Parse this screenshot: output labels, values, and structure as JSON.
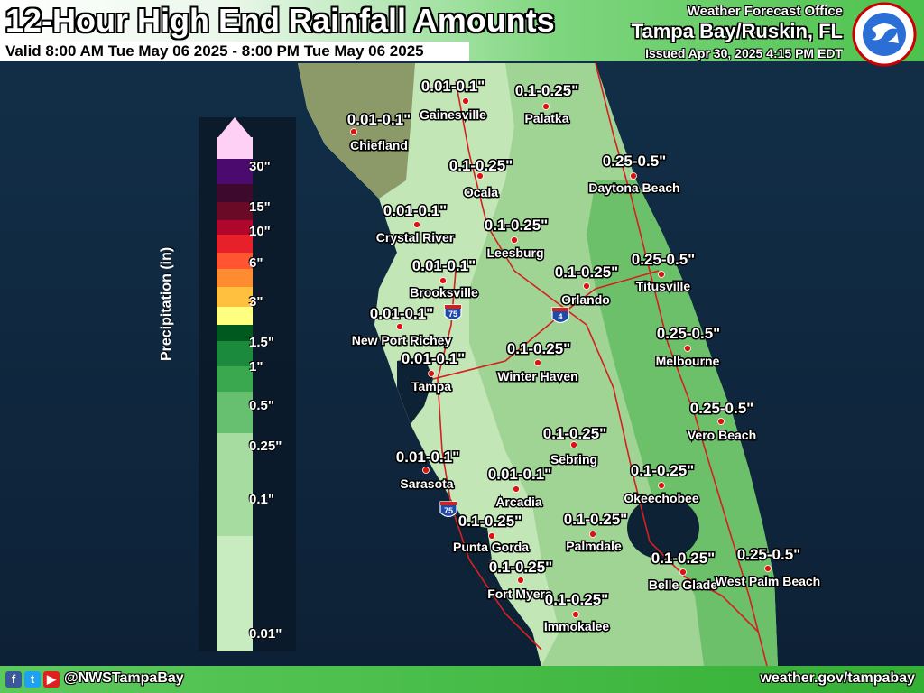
{
  "header": {
    "title": "12-Hour High End Rainfall Amounts",
    "valid": "Valid 8:00 AM Tue May 06 2025 - 8:00 PM Tue May 06 2025",
    "office_line1": "Weather Forecast Office",
    "office_line2": "Tampa Bay/Ruskin, FL",
    "issued": "Issued Apr 30, 2025 4:15 PM EDT",
    "logo_text": "NATIONAL WEATHER SERVICE"
  },
  "legend": {
    "label": "Precipitation (in)",
    "ticks": [
      "30\"",
      "15\"",
      "10\"",
      "6\"",
      "3\"",
      "1.5\"",
      "1\"",
      "0.5\"",
      "0.25\"",
      "0.1\"",
      "0.01\""
    ],
    "colors": [
      "#ffd0f5",
      "#4b0a6e",
      "#3d0a2d",
      "#6b0a26",
      "#b0062b",
      "#e8202a",
      "#ff5530",
      "#ff8c30",
      "#ffc040",
      "#ffff80",
      "#005a20",
      "#1c8a3c",
      "#3aa84e",
      "#67c070",
      "#a6dca0",
      "#c8ecc0"
    ]
  },
  "cities": [
    {
      "name": "Gainesville",
      "value": "0.01-0.1\""
    },
    {
      "name": "Palatka",
      "value": "0.1-0.25\""
    },
    {
      "name": "Chiefland",
      "value": "0.01-0.1\""
    },
    {
      "name": "Ocala",
      "value": "0.1-0.25\""
    },
    {
      "name": "Daytona Beach",
      "value": "0.25-0.5\""
    },
    {
      "name": "Crystal River",
      "value": "0.01-0.1\""
    },
    {
      "name": "Leesburg",
      "value": "0.1-0.25\""
    },
    {
      "name": "Brooksville",
      "value": "0.01-0.1\""
    },
    {
      "name": "Orlando",
      "value": "0.1-0.25\""
    },
    {
      "name": "Titusville",
      "value": "0.25-0.5\""
    },
    {
      "name": "New Port Richey",
      "value": "0.01-0.1\""
    },
    {
      "name": "Melbourne",
      "value": "0.25-0.5\""
    },
    {
      "name": "Tampa",
      "value": "0.01-0.1\""
    },
    {
      "name": "Winter Haven",
      "value": "0.1-0.25\""
    },
    {
      "name": "Vero Beach",
      "value": "0.25-0.5\""
    },
    {
      "name": "Sebring",
      "value": "0.1-0.25\""
    },
    {
      "name": "Sarasota",
      "value": "0.01-0.1\""
    },
    {
      "name": "Okeechobee",
      "value": "0.1-0.25\""
    },
    {
      "name": "Arcadia",
      "value": "0.01-0.1\""
    },
    {
      "name": "Punta Gorda",
      "value": "0.1-0.25\""
    },
    {
      "name": "Palmdale",
      "value": "0.1-0.25\""
    },
    {
      "name": "Belle Glade",
      "value": "0.1-0.25\""
    },
    {
      "name": "West Palm Beach",
      "value": "0.25-0.5\""
    },
    {
      "name": "Fort Myers",
      "value": "0.1-0.25\""
    },
    {
      "name": "Immokalee",
      "value": "0.1-0.25\""
    }
  ],
  "interstates": [
    "75",
    "4",
    "75"
  ],
  "footer": {
    "social_icons": [
      "facebook-icon",
      "twitter-icon",
      "youtube-icon"
    ],
    "handle": "@NWSTampaBay",
    "site": "weather.gov/tampabay"
  }
}
